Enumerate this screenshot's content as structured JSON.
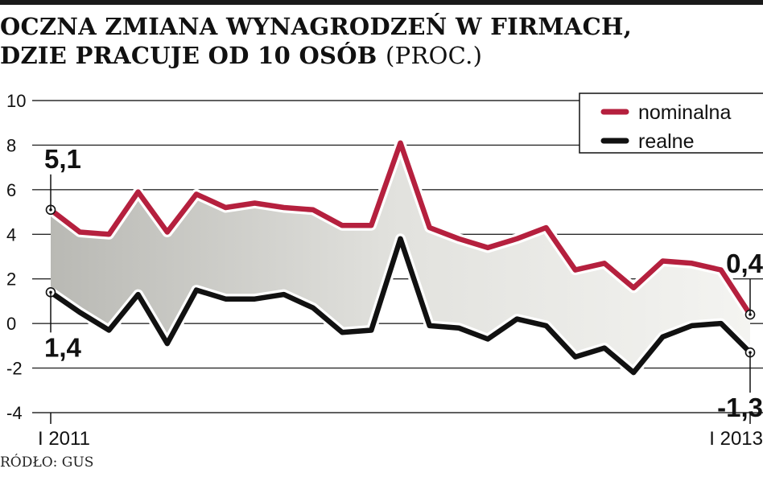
{
  "title_line1": "OCZNA ZMIANA WYNAGRODZEŃ W FIRMACH,",
  "title_line2": "DZIE PRACUJE OD 10 OSÓB",
  "title_unit": "(PROC.)",
  "source": "RÓDŁO: GUS",
  "chart_data": {
    "type": "line",
    "xlabel": "",
    "ylabel": "",
    "ylim": [
      -4,
      10
    ],
    "yticks": [
      "10",
      "8",
      "6",
      "4",
      "2",
      "0",
      "-2",
      "-4"
    ],
    "x_ticks": [
      "I 2011",
      "I 2013"
    ],
    "grid": true,
    "legend_position": "top-right",
    "series": [
      {
        "name": "nominalna",
        "color": "#b5203e",
        "values": [
          5.1,
          4.1,
          4.0,
          5.9,
          4.1,
          5.8,
          5.2,
          5.4,
          5.2,
          5.1,
          4.4,
          4.4,
          8.1,
          4.3,
          3.8,
          3.4,
          3.8,
          4.3,
          2.4,
          2.7,
          1.6,
          2.8,
          2.7,
          2.4,
          0.4
        ]
      },
      {
        "name": "realne",
        "color": "#111111",
        "values": [
          1.4,
          0.5,
          -0.3,
          1.3,
          -0.9,
          1.5,
          1.1,
          1.1,
          1.3,
          0.7,
          -0.4,
          -0.3,
          3.8,
          -0.1,
          -0.2,
          -0.7,
          0.2,
          -0.1,
          -1.5,
          -1.1,
          -2.2,
          -0.6,
          -0.1,
          0.0,
          -1.3
        ]
      }
    ],
    "annotations": [
      {
        "text": "5,1",
        "series": 0,
        "index": 0
      },
      {
        "text": "1,4",
        "series": 1,
        "index": 0
      },
      {
        "text": "0,4",
        "series": 0,
        "index": 24
      },
      {
        "text": "-1,3",
        "series": 1,
        "index": 24
      }
    ],
    "fill_between": true
  }
}
